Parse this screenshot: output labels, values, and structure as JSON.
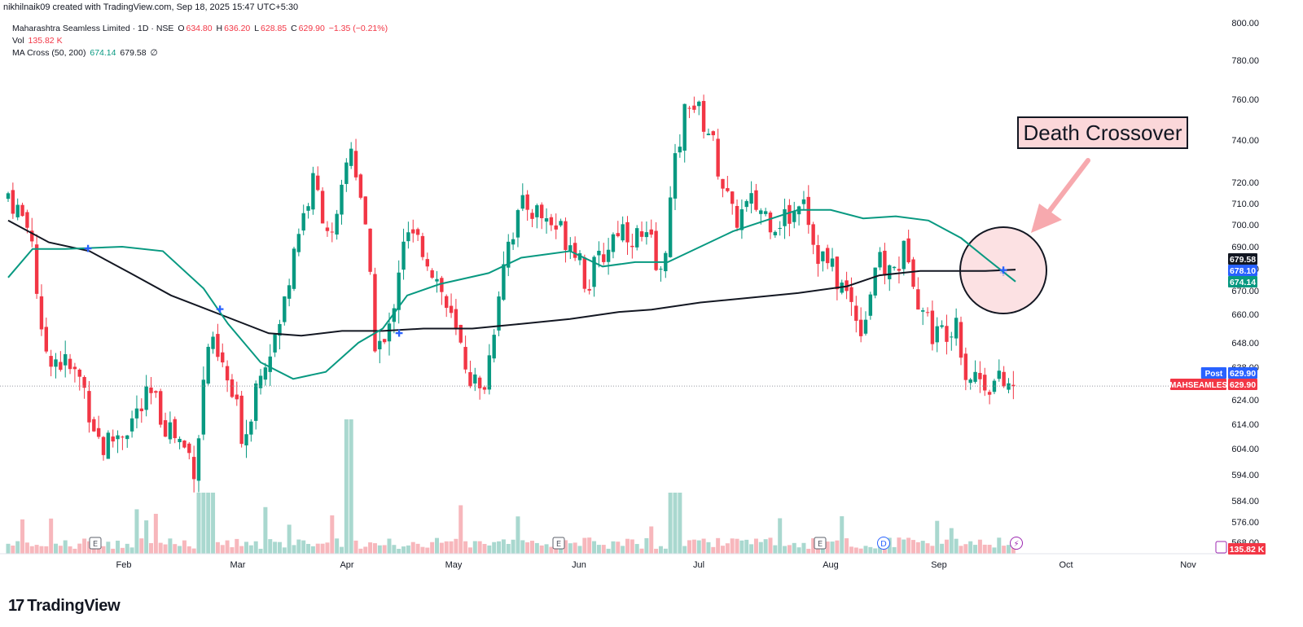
{
  "header": {
    "attribution": "nikhilnaik09 created with TradingView.com, Sep 18, 2025 15:47 UTC+5:30"
  },
  "legend": {
    "symbol": "Maharashtra Seamless Limited · 1D · NSE",
    "open_label": "O",
    "open": "634.80",
    "high_label": "H",
    "high": "636.20",
    "low_label": "L",
    "low": "628.85",
    "close_label": "C",
    "close": "629.90",
    "change": "−1.35 (−0.21%)",
    "vol_label": "Vol",
    "vol": "135.82 K",
    "ma_label": "MA Cross (50, 200)",
    "ma_fast": "674.14",
    "ma_slow": "679.58",
    "ma_extra": "∅"
  },
  "annotation": {
    "text": "Death Crossover"
  },
  "footer": {
    "brand": "TradingView",
    "logo_icon": "tradingview-logo-icon"
  },
  "colors": {
    "up": "#089981",
    "down": "#f23645",
    "ma_fast": "#089981",
    "ma_slow": "#131722",
    "vol_up": "#a9d8cf",
    "vol_down": "#f7b7bc",
    "callout_fill": "#fbd7d9",
    "arrow": "#f7a9ae"
  },
  "chart_data": {
    "type": "candlestick",
    "title": "Maharashtra Seamless Limited · 1D · NSE",
    "y_axis": {
      "ticks": [
        800,
        780,
        760,
        740,
        720,
        710,
        700,
        690,
        680,
        670,
        660,
        648,
        638,
        624,
        614,
        604,
        594,
        584,
        576,
        568
      ],
      "scale": "log",
      "side": "right"
    },
    "x_axis": {
      "labels": [
        "Feb",
        "Mar",
        "Apr",
        "May",
        "Jun",
        "Jul",
        "Aug",
        "Sep",
        "Oct",
        "Nov"
      ]
    },
    "price_badges": [
      {
        "label": "",
        "value": "679.58",
        "color": "#131722"
      },
      {
        "label": "",
        "value": "678.10",
        "color": "#2962ff"
      },
      {
        "label": "",
        "value": "674.14",
        "color": "#089981"
      },
      {
        "label": "Post",
        "value": "629.90",
        "color": "#2962ff"
      },
      {
        "label": "MAHSEAMLES",
        "value": "629.90",
        "color": "#f23645"
      }
    ],
    "volume_badge": "135.82 K",
    "events": [
      "E",
      "E",
      "E",
      "D",
      "⚡"
    ],
    "series": [
      {
        "name": "MA Cross (50, 200) fast",
        "last": 674.14
      },
      {
        "name": "MA Cross (50, 200) slow",
        "last": 679.58
      }
    ],
    "last_close": 629.9,
    "grid": false,
    "legend_position": "top-left"
  }
}
